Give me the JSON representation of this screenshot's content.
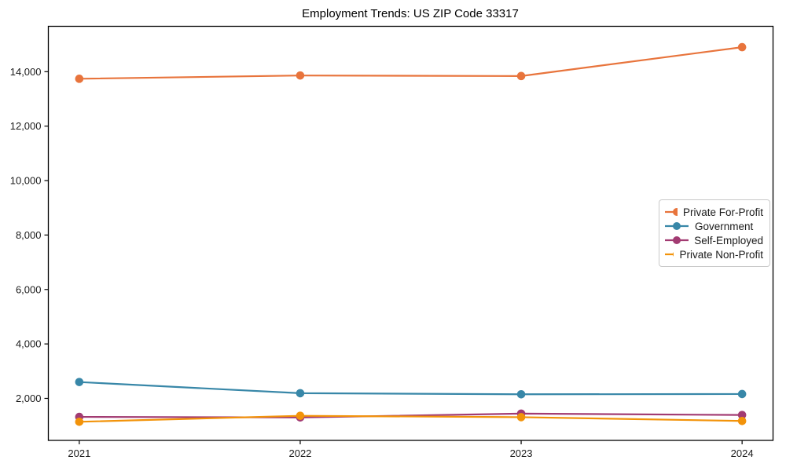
{
  "chart_data": {
    "type": "line",
    "title": "Employment Trends: US ZIP Code 33317",
    "categories": [
      "2021",
      "2022",
      "2023",
      "2024"
    ],
    "series": [
      {
        "name": "Private For-Profit",
        "color": "#E8743C",
        "values": [
          13740,
          13860,
          13840,
          14900
        ]
      },
      {
        "name": "Government",
        "color": "#3887A8",
        "values": [
          2600,
          2190,
          2150,
          2160
        ]
      },
      {
        "name": "Self-Employed",
        "color": "#A23B72",
        "values": [
          1320,
          1300,
          1440,
          1390
        ]
      },
      {
        "name": "Private Non-Profit",
        "color": "#F2930A",
        "values": [
          1140,
          1360,
          1310,
          1170
        ]
      }
    ],
    "xlabel": "",
    "ylabel": "",
    "yticks": [
      2000,
      4000,
      6000,
      8000,
      10000,
      12000,
      14000
    ],
    "ytick_labels": [
      "2,000",
      "4,000",
      "6,000",
      "8,000",
      "10,000",
      "12,000",
      "14,000"
    ],
    "xtick_labels": [
      "2021",
      "2022",
      "2023",
      "2024"
    ],
    "ylim": [
      457,
      15667
    ],
    "grid": false,
    "legend_position": "center-right",
    "axis_color": "#000000"
  }
}
